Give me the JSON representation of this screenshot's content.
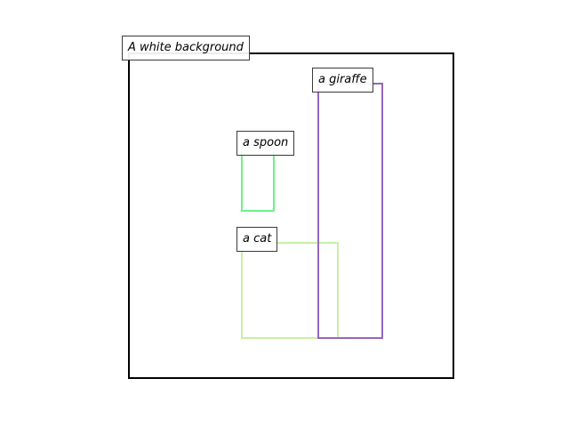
{
  "canvas": {
    "caption": "A white background",
    "border_color": "#000000",
    "background_color": "#ffffff"
  },
  "objects": [
    {
      "id": "giraffe",
      "label": "a giraffe",
      "color": "#9467bd"
    },
    {
      "id": "spoon",
      "label": "a spoon",
      "color": "#6ef08c"
    },
    {
      "id": "cat",
      "label": "a cat",
      "color": "#c6f0a8"
    }
  ]
}
